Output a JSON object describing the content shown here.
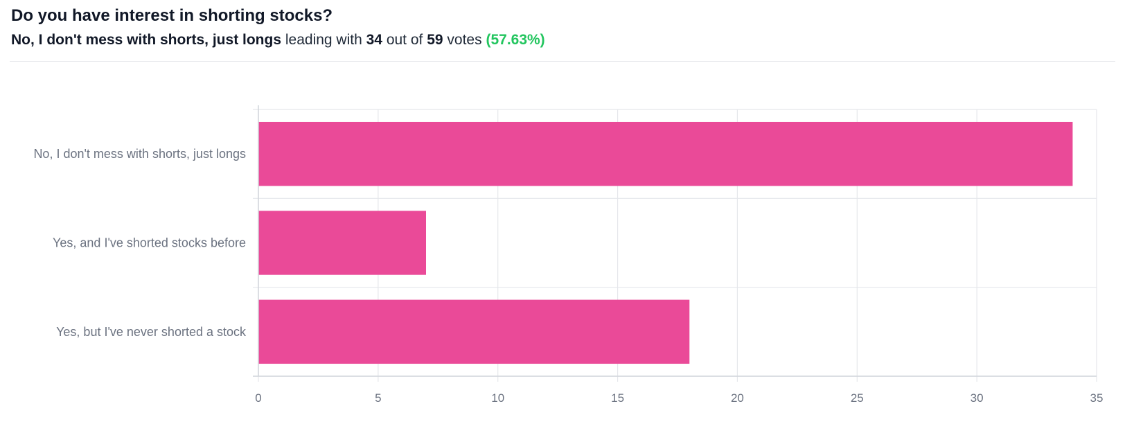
{
  "header": {
    "title": "Do you have interest in shorting stocks?",
    "leader": "No, I don't mess with shorts, just longs",
    "leading_with": "leading with",
    "votes_leader": "34",
    "out_of": "out of",
    "votes_total": "59",
    "votes_word": "votes",
    "percent": "(57.63%)"
  },
  "colors": {
    "bar": "#ea4a98",
    "percent": "#22c55e",
    "grid": "#e5e7eb"
  },
  "chart_data": {
    "type": "bar",
    "orientation": "horizontal",
    "categories": [
      "No, I don't mess with shorts, just longs",
      "Yes, and I've shorted stocks before",
      "Yes, but I've never shorted a stock"
    ],
    "values": [
      34,
      7,
      18
    ],
    "xlim": [
      0,
      35
    ],
    "xticks": [
      "0",
      "5",
      "10",
      "15",
      "20",
      "25",
      "30",
      "35"
    ],
    "grid": true,
    "legend": "none"
  }
}
